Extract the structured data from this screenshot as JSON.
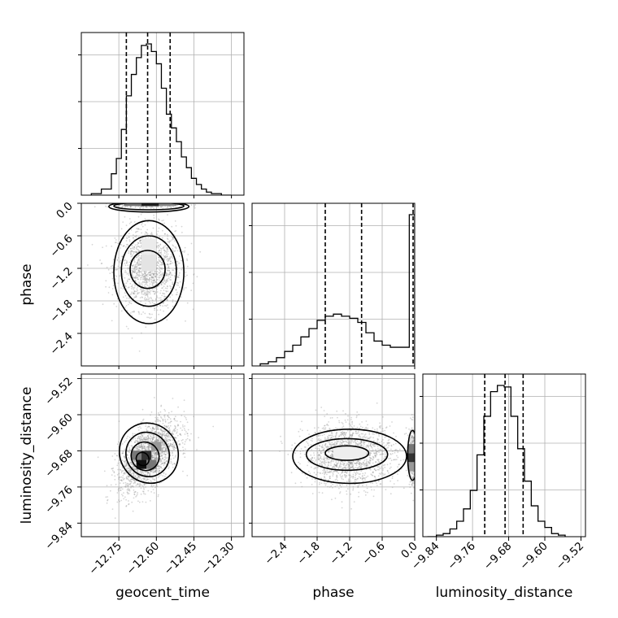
{
  "chart_data": {
    "type": "corner",
    "grid": true,
    "parameters": [
      {
        "label": "geocent_time",
        "range": [
          -12.9,
          -12.25
        ],
        "ticks": [
          -12.75,
          -12.6,
          -12.45,
          -12.3
        ],
        "tick_labels": [
          "−12.75",
          "−12.60",
          "−12.45",
          "−12.30"
        ],
        "quantiles": [
          -12.72,
          -12.635,
          -12.545
        ],
        "histogram": {
          "edges": [
            -12.86,
            -12.82,
            -12.78,
            -12.76,
            -12.74,
            -12.72,
            -12.7,
            -12.68,
            -12.66,
            -12.64,
            -12.62,
            -12.6,
            -12.58,
            -12.56,
            -12.54,
            -12.52,
            -12.5,
            -12.48,
            -12.46,
            -12.44,
            -12.42,
            -12.4,
            -12.38,
            -12.34,
            -12.3
          ],
          "counts": [
            1,
            4,
            14,
            24,
            43,
            65,
            79,
            90,
            98,
            99,
            94,
            86,
            70,
            53,
            44,
            35,
            25,
            18,
            11,
            7,
            4,
            2,
            1,
            0
          ]
        }
      },
      {
        "label": "phase",
        "range": [
          -3.0,
          0.0
        ],
        "ticks": [
          -2.4,
          -1.8,
          -1.2,
          -0.6,
          0.0
        ],
        "tick_labels": [
          "−2.4",
          "−1.8",
          "−1.2",
          "−0.6",
          "0.0"
        ],
        "quantiles": [
          -1.65,
          -0.98,
          -0.03
        ],
        "histogram": {
          "edges": [
            -2.85,
            -2.7,
            -2.55,
            -2.4,
            -2.25,
            -2.1,
            -1.95,
            -1.8,
            -1.65,
            -1.5,
            -1.35,
            -1.2,
            -1.05,
            -0.9,
            -0.75,
            -0.6,
            -0.45,
            -0.3,
            -0.1,
            0.0
          ],
          "counts": [
            1,
            2,
            4,
            7,
            10,
            14,
            18,
            22,
            24,
            25,
            24,
            23,
            21,
            16,
            12,
            10,
            9,
            9,
            73
          ]
        }
      },
      {
        "label": "luminosity_distance",
        "range": [
          -9.87,
          -9.51
        ],
        "ticks": [
          -9.84,
          -9.76,
          -9.68,
          -9.6,
          -9.52
        ],
        "tick_labels": [
          "−9.84",
          "−9.76",
          "−9.68",
          "−9.60",
          "−9.52"
        ],
        "quantiles": [
          -9.733,
          -9.688,
          -9.648
        ],
        "histogram": {
          "edges": [
            -9.86,
            -9.84,
            -9.825,
            -9.81,
            -9.795,
            -9.78,
            -9.765,
            -9.75,
            -9.735,
            -9.72,
            -9.705,
            -9.69,
            -9.675,
            -9.66,
            -9.645,
            -9.63,
            -9.615,
            -9.6,
            -9.585,
            -9.57,
            -9.555
          ],
          "counts": [
            0,
            1,
            2,
            5,
            10,
            18,
            30,
            53,
            78,
            94,
            98,
            97,
            78,
            57,
            36,
            20,
            10,
            6,
            2,
            1
          ]
        }
      }
    ],
    "density_panels": [
      {
        "x": "geocent_time",
        "y": "phase",
        "points": [
          {
            "center": [
              -12.63,
              -1.2
            ],
            "spread": [
              0.065,
              0.38
            ],
            "corr": 0.0,
            "n": 1400
          },
          {
            "center": [
              -12.63,
              -0.02
            ],
            "spread": [
              0.065,
              0.03
            ],
            "corr": 0.0,
            "n": 400
          }
        ],
        "contours": [
          {
            "center": [
              -12.635,
              -1.22
            ],
            "radii": [
              0.07,
              0.35
            ]
          },
          {
            "center": [
              -12.63,
              -1.25
            ],
            "radii": [
              0.11,
              0.65
            ]
          },
          {
            "center": [
              -12.63,
              -1.27
            ],
            "radii": [
              0.14,
              0.95
            ]
          },
          {
            "center": [
              -12.63,
              -0.06
            ],
            "radii": [
              0.16,
              0.1
            ]
          },
          {
            "center": [
              -12.63,
              -0.05
            ],
            "radii": [
              0.14,
              0.07
            ]
          }
        ],
        "shading": [
          {
            "cell": [
              -12.66,
              -0.05,
              0.07,
              0.1
            ],
            "gray": "#222222"
          },
          {
            "cell": [
              -12.73,
              -0.05,
              0.07,
              0.1
            ],
            "gray": "#777777"
          },
          {
            "cell": [
              -12.59,
              -0.05,
              0.07,
              0.1
            ],
            "gray": "#888888"
          },
          {
            "cell": [
              -12.66,
              -1.25,
              0.06,
              0.3
            ],
            "gray": "#e4e4e4"
          },
          {
            "cell": [
              -12.66,
              -0.95,
              0.06,
              0.3
            ],
            "gray": "#ebebeb"
          }
        ]
      },
      {
        "x": "geocent_time",
        "y": "luminosity_distance",
        "points": [
          {
            "center": [
              -12.63,
              -9.69
            ],
            "spread": [
              0.06,
              0.04
            ],
            "corr": 0.55,
            "n": 1900
          }
        ],
        "contours": [
          {
            "center": [
              -12.655,
              -9.698
            ],
            "radii": [
              0.025,
              0.015
            ],
            "angle": -35
          },
          {
            "center": [
              -12.645,
              -9.692
            ],
            "radii": [
              0.055,
              0.032
            ],
            "angle": -35
          },
          {
            "center": [
              -12.635,
              -9.688
            ],
            "radii": [
              0.085,
              0.05
            ],
            "angle": -35
          },
          {
            "center": [
              -12.63,
              -9.685
            ],
            "radii": [
              0.115,
              0.068
            ],
            "angle": -35
          }
        ],
        "shading": [
          {
            "cell": [
              -12.68,
              -9.72,
              0.04,
              0.02
            ],
            "gray": "#111111"
          },
          {
            "cell": [
              -12.66,
              -9.7,
              0.04,
              0.02
            ],
            "gray": "#333333"
          },
          {
            "cell": [
              -12.7,
              -9.7,
              0.04,
              0.02
            ],
            "gray": "#777777"
          },
          {
            "cell": [
              -12.64,
              -9.72,
              0.04,
              0.02
            ],
            "gray": "#777777"
          },
          {
            "cell": [
              -12.62,
              -9.68,
              0.04,
              0.02
            ],
            "gray": "#999999"
          }
        ]
      },
      {
        "x": "phase",
        "y": "luminosity_distance",
        "points": [
          {
            "center": [
              -1.2,
              -9.69
            ],
            "spread": [
              0.42,
              0.035
            ],
            "corr": 0.0,
            "n": 1500
          },
          {
            "center": [
              -0.03,
              -9.69
            ],
            "spread": [
              0.04,
              0.035
            ],
            "corr": 0.0,
            "n": 350
          }
        ],
        "contours": [
          {
            "center": [
              -1.25,
              -9.685
            ],
            "radii": [
              0.4,
              0.016
            ]
          },
          {
            "center": [
              -1.25,
              -9.688
            ],
            "radii": [
              0.75,
              0.035
            ]
          },
          {
            "center": [
              -1.2,
              -9.692
            ],
            "radii": [
              1.05,
              0.06
            ]
          },
          {
            "center": [
              -0.04,
              -9.69
            ],
            "radii": [
              0.09,
              0.055
            ]
          }
        ],
        "shading": [
          {
            "cell": [
              -0.12,
              -9.705,
              0.12,
              0.02
            ],
            "gray": "#333333"
          },
          {
            "cell": [
              -0.12,
              -9.685,
              0.12,
              0.02
            ],
            "gray": "#777777"
          },
          {
            "cell": [
              -0.12,
              -9.725,
              0.12,
              0.02
            ],
            "gray": "#999999"
          },
          {
            "cell": [
              -1.5,
              -9.7,
              0.6,
              0.03
            ],
            "gray": "#eeeeee"
          }
        ]
      }
    ]
  }
}
